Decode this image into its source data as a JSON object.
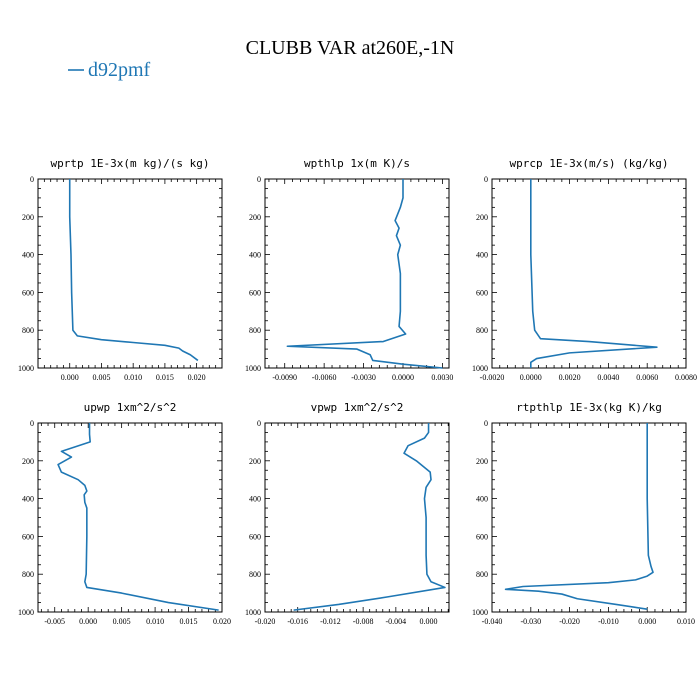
{
  "figure": {
    "title": "CLUBB VAR at260E,-1N",
    "legend": {
      "label": "d92pmf",
      "color": "#1f77b4"
    }
  },
  "chart_data": [
    {
      "type": "line",
      "title": "wprtp  1E-3x(m kg)/(s kg)",
      "xlim": [
        -0.005,
        0.024
      ],
      "ylim": [
        0,
        1000
      ],
      "xticks": [
        0.0,
        0.005,
        0.01,
        0.015,
        0.02
      ],
      "xtick_labels": [
        "0.000",
        "0.005",
        "0.010",
        "0.015",
        "0.020"
      ],
      "yticks": [
        0,
        200,
        400,
        600,
        800,
        1000
      ],
      "ytick_labels": [
        "0",
        "200",
        "400",
        "600",
        "800",
        "1000"
      ],
      "series": [
        {
          "x": [
            0.0,
            0.0,
            0.0002,
            0.0003,
            0.0005,
            0.0012,
            0.005,
            0.01,
            0.015,
            0.0172,
            0.0178,
            0.019,
            0.0202
          ],
          "y": [
            0,
            200,
            400,
            600,
            800,
            830,
            850,
            865,
            880,
            895,
            910,
            930,
            960
          ]
        }
      ]
    },
    {
      "type": "line",
      "title": "wpthlp  1x(m K)/s",
      "xlim": [
        -0.0105,
        0.0035
      ],
      "ylim": [
        0,
        1000
      ],
      "xticks": [
        -0.009,
        -0.006,
        -0.003,
        0.0,
        0.003
      ],
      "xtick_labels": [
        "-0.0090",
        "-0.0060",
        "-0.0030",
        "0.0000",
        "0.0030"
      ],
      "yticks": [
        0,
        200,
        400,
        600,
        800,
        1000
      ],
      "ytick_labels": [
        "0",
        "200",
        "400",
        "600",
        "800",
        "1000"
      ],
      "series": [
        {
          "x": [
            0.0,
            0.0,
            -0.0002,
            -0.0006,
            -0.0003,
            -0.0005,
            -0.0002,
            -0.0004,
            -0.0002,
            -0.0002,
            -0.0003,
            0.0002,
            -0.0015,
            -0.0088,
            -0.0035,
            -0.0025,
            -0.0023,
            0.0,
            0.003
          ],
          "y": [
            0,
            100,
            150,
            220,
            260,
            300,
            350,
            400,
            500,
            700,
            780,
            820,
            860,
            885,
            900,
            930,
            960,
            980,
            1000
          ]
        }
      ]
    },
    {
      "type": "line",
      "title": "wprcp  1E-3x(m/s) (kg/kg)",
      "xlim": [
        -0.002,
        0.008
      ],
      "ylim": [
        0,
        1000
      ],
      "xticks": [
        -0.002,
        0.0,
        0.002,
        0.004,
        0.006,
        0.008
      ],
      "xtick_labels": [
        "-0.0020",
        "0.0000",
        "0.0020",
        "0.0040",
        "0.0060",
        "0.0080"
      ],
      "yticks": [
        0,
        200,
        400,
        600,
        800,
        1000
      ],
      "ytick_labels": [
        "0",
        "200",
        "400",
        "600",
        "800",
        "1000"
      ],
      "series": [
        {
          "x": [
            0.0,
            0.0,
            0.0001,
            0.0002,
            0.0005,
            0.003,
            0.0065,
            0.002,
            0.0003,
            0.0,
            0.0
          ],
          "y": [
            0,
            400,
            700,
            800,
            845,
            860,
            890,
            920,
            950,
            970,
            1000
          ]
        }
      ]
    },
    {
      "type": "line",
      "title": "upwp  1xm^2/s^2",
      "xlim": [
        -0.0075,
        0.02
      ],
      "ylim": [
        0,
        1000
      ],
      "xticks": [
        -0.005,
        0.0,
        0.005,
        0.01,
        0.015,
        0.02
      ],
      "xtick_labels": [
        "-0.005",
        "0.000",
        "0.005",
        "0.010",
        "0.015",
        "0.020"
      ],
      "yticks": [
        0,
        200,
        400,
        600,
        800,
        1000
      ],
      "ytick_labels": [
        "0",
        "200",
        "400",
        "600",
        "800",
        "1000"
      ],
      "series": [
        {
          "x": [
            0.0002,
            0.0002,
            0.0003,
            -0.004,
            -0.0025,
            -0.0045,
            -0.004,
            -0.0015,
            -0.0005,
            -0.0002,
            -0.0006,
            -0.0005,
            -0.0002,
            -0.0002,
            -0.0003,
            -0.0005,
            -0.0002,
            0.005,
            0.012,
            0.0195
          ],
          "y": [
            0,
            60,
            100,
            150,
            180,
            220,
            260,
            300,
            330,
            360,
            380,
            420,
            450,
            600,
            800,
            840,
            870,
            900,
            950,
            990
          ]
        }
      ]
    },
    {
      "type": "line",
      "title": "vpwp  1xm^2/s^2",
      "xlim": [
        -0.02,
        0.0025
      ],
      "ylim": [
        0,
        1000
      ],
      "xticks": [
        -0.02,
        -0.016,
        -0.012,
        -0.008,
        -0.004,
        0.0
      ],
      "xtick_labels": [
        "-0.020",
        "-0.016",
        "-0.012",
        "-0.008",
        "-0.004",
        "0.000"
      ],
      "yticks": [
        0,
        200,
        400,
        600,
        800,
        1000
      ],
      "ytick_labels": [
        "0",
        "200",
        "400",
        "600",
        "800",
        "1000"
      ],
      "series": [
        {
          "x": [
            0.0,
            0.0,
            -0.0005,
            -0.0025,
            -0.003,
            -0.0015,
            0.0002,
            0.0003,
            -0.0003,
            -0.0005,
            -0.0003,
            -0.0003,
            -0.0002,
            0.0003,
            0.002,
            -0.005,
            -0.011,
            -0.0165
          ],
          "y": [
            0,
            50,
            80,
            120,
            160,
            200,
            260,
            300,
            340,
            400,
            500,
            700,
            800,
            840,
            870,
            920,
            960,
            990
          ]
        }
      ]
    },
    {
      "type": "line",
      "title": "rtpthlp  1E-3x(kg K)/kg",
      "xlim": [
        -0.04,
        0.01
      ],
      "ylim": [
        0,
        1000
      ],
      "xticks": [
        -0.04,
        -0.03,
        -0.02,
        -0.01,
        0.0,
        0.01
      ],
      "xtick_labels": [
        "-0.040",
        "-0.030",
        "-0.020",
        "-0.010",
        "0.000",
        "0.010"
      ],
      "yticks": [
        0,
        200,
        400,
        600,
        800,
        1000
      ],
      "ytick_labels": [
        "0",
        "200",
        "400",
        "600",
        "800",
        "1000"
      ],
      "series": [
        {
          "x": [
            0.0,
            0.0,
            0.0003,
            0.001,
            0.0015,
            0.0,
            -0.003,
            -0.01,
            -0.032,
            -0.0365,
            -0.028,
            -0.022,
            -0.018,
            -0.008,
            0.0
          ],
          "y": [
            0,
            400,
            700,
            760,
            790,
            810,
            830,
            845,
            865,
            880,
            890,
            905,
            930,
            960,
            985
          ]
        }
      ]
    }
  ]
}
